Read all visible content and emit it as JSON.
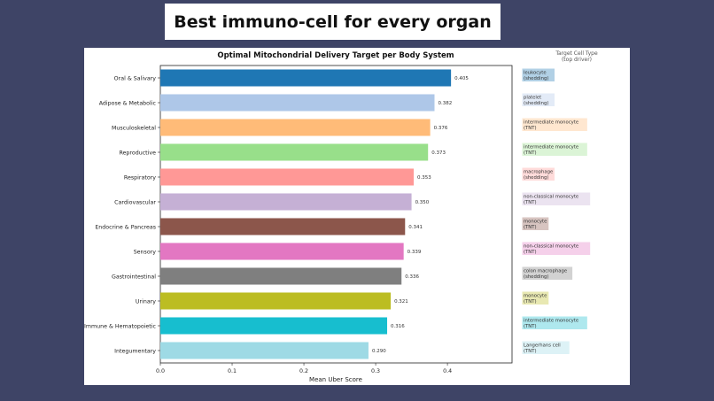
{
  "slide": {
    "heading": "Best immuno-cell for every organ"
  },
  "chart_data": {
    "type": "bar",
    "orientation": "horizontal",
    "title": "Optimal Mitochondrial Delivery Target per Body System",
    "xlabel": "Mean Uber Score",
    "ylabel": "",
    "xlim": [
      0,
      0.49
    ],
    "xticks": [
      "0.0",
      "0.1",
      "0.2",
      "0.3",
      "0.4"
    ],
    "grid": false,
    "legend_title": "Target Cell Type",
    "legend_subtitle": "(top driver)",
    "legend_placement": "right",
    "bars": [
      {
        "category": "Oral & Salivary",
        "value": 0.405,
        "label": "0.405",
        "color": "#1f77b4",
        "cell_line1": "leukocyte",
        "cell_line2": "(shedding)"
      },
      {
        "category": "Adipose & Metabolic",
        "value": 0.382,
        "label": "0.382",
        "color": "#aec7e8",
        "cell_line1": "platelet",
        "cell_line2": "(shedding)"
      },
      {
        "category": "Musculoskeletal",
        "value": 0.376,
        "label": "0.376",
        "color": "#ffbb78",
        "cell_line1": "intermediate monocyte",
        "cell_line2": "(TNT)"
      },
      {
        "category": "Reproductive",
        "value": 0.373,
        "label": "0.373",
        "color": "#98df8a",
        "cell_line1": "intermediate monocyte",
        "cell_line2": "(TNT)"
      },
      {
        "category": "Respiratory",
        "value": 0.353,
        "label": "0.353",
        "color": "#ff9896",
        "cell_line1": "macrophage",
        "cell_line2": "(shedding)"
      },
      {
        "category": "Cardiovascular",
        "value": 0.35,
        "label": "0.350",
        "color": "#c5b0d5",
        "cell_line1": "non-classical monocyte",
        "cell_line2": "(TNT)"
      },
      {
        "category": "Endocrine & Pancreas",
        "value": 0.341,
        "label": "0.341",
        "color": "#8c564b",
        "cell_line1": "monocyte",
        "cell_line2": "(TNT)"
      },
      {
        "category": "Sensory",
        "value": 0.339,
        "label": "0.339",
        "color": "#e377c2",
        "cell_line1": "non-classical monocyte",
        "cell_line2": "(TNT)"
      },
      {
        "category": "Gastrointestinal",
        "value": 0.336,
        "label": "0.336",
        "color": "#7f7f7f",
        "cell_line1": "colon macrophage",
        "cell_line2": "(shedding)"
      },
      {
        "category": "Urinary",
        "value": 0.321,
        "label": "0.321",
        "color": "#bcbd22",
        "cell_line1": "monocyte",
        "cell_line2": "(TNT)"
      },
      {
        "category": "Immune & Hematopoietic",
        "value": 0.316,
        "label": "0.316",
        "color": "#17becf",
        "cell_line1": "intermediate monocyte",
        "cell_line2": "(TNT)"
      },
      {
        "category": "Integumentary",
        "value": 0.29,
        "label": "0.290",
        "color": "#9edae5",
        "cell_line1": "Langerhans cell",
        "cell_line2": "(TNT)"
      }
    ]
  }
}
